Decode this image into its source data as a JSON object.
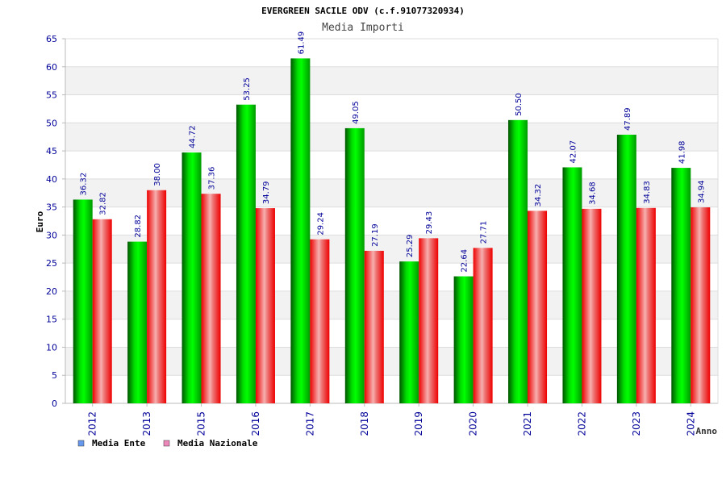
{
  "chart_data": {
    "type": "bar",
    "title": "EVERGREEN SACILE ODV (c.f.91077320934)",
    "subtitle": "Media Importi",
    "xlabel": "Anno",
    "ylabel": "Euro",
    "ylim": [
      0,
      65
    ],
    "yticks": [
      0,
      5,
      10,
      15,
      20,
      25,
      30,
      35,
      40,
      45,
      50,
      55,
      60,
      65
    ],
    "categories": [
      "2012",
      "2013",
      "2015",
      "2016",
      "2017",
      "2018",
      "2019",
      "2020",
      "2021",
      "2022",
      "2023",
      "2024"
    ],
    "series": [
      {
        "name": "Media Ente",
        "values": [
          36.32,
          28.82,
          44.72,
          53.25,
          61.49,
          49.05,
          25.29,
          22.64,
          50.5,
          42.07,
          47.89,
          41.98
        ],
        "labels": [
          "36.32",
          "28.82",
          "44.72",
          "53.25",
          "61.49",
          "49.05",
          "25.29",
          "22.64",
          "50.50",
          "42.07",
          "47.89",
          "41.98"
        ],
        "color": "#00cc00",
        "legend_color": "#6699ee"
      },
      {
        "name": "Media Nazionale",
        "values": [
          32.82,
          38.0,
          37.36,
          34.79,
          29.24,
          27.19,
          29.43,
          27.71,
          34.32,
          34.68,
          34.83,
          34.94
        ],
        "labels": [
          "32.82",
          "38.00",
          "37.36",
          "34.79",
          "29.24",
          "27.19",
          "29.43",
          "27.71",
          "34.32",
          "34.68",
          "34.83",
          "34.94"
        ],
        "color": "#ff0000",
        "legend_color": "#ee88bb"
      }
    ],
    "grid": true,
    "legend_position": "bottom-left",
    "colors": {
      "axis_text": "#000099",
      "band": "#f2f2f2",
      "grid": "#dddddd",
      "axis": "#bbbbbb"
    }
  }
}
